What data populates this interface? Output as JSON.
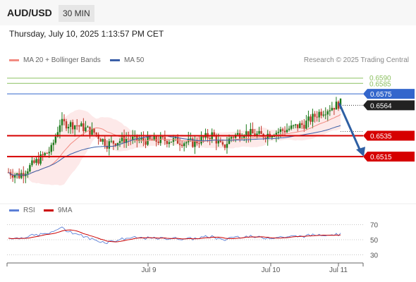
{
  "header": {
    "pair": "AUD/USD",
    "timeframe": "30 MIN"
  },
  "datetime": "Thursday, July 10, 2025 1:13:57 PM CET",
  "credit": "Research © 2025 Trading Central",
  "colors": {
    "bull": "#1a7a1a",
    "bear": "#c0392b",
    "band": "#fbdada",
    "ma20": "#f28b82",
    "ma50": "#3a5fa8",
    "support": "#d60000",
    "resistance": "#3366cc",
    "target": "#8cc060",
    "rsi": "#5b7fd6",
    "rsi_ma": "#cc0000",
    "arrow": "#2e5fa3"
  },
  "chart_data": [
    {
      "type": "candlestick",
      "legend": [
        {
          "name": "MA 20 + Bollinger Bands",
          "color": "#f28b82"
        },
        {
          "name": "MA 50",
          "color": "#3a5fa8"
        }
      ],
      "x_ticks": [
        "Jul 9",
        "Jul 10",
        "Jul 11"
      ],
      "ylim": [
        0.6476,
        0.66
      ],
      "current_price": 0.6564,
      "levels": [
        {
          "label": "0.6590",
          "value": 0.659,
          "kind": "target"
        },
        {
          "label": "0.6585",
          "value": 0.6585,
          "kind": "target"
        },
        {
          "label": "0.6575",
          "value": 0.6575,
          "kind": "resistance"
        },
        {
          "label": "0.6535",
          "value": 0.6535,
          "kind": "support"
        },
        {
          "label": "0.6515",
          "value": 0.6515,
          "kind": "support"
        }
      ],
      "forecast": {
        "from": 0.6566,
        "to": 0.6515,
        "direction": "down"
      }
    },
    {
      "type": "line",
      "legend": [
        {
          "name": "RSI",
          "color": "#5b7fd6"
        },
        {
          "name": "9MA",
          "color": "#cc0000"
        }
      ],
      "y_ticks": [
        70,
        50,
        30
      ],
      "ylim": [
        20,
        80
      ]
    }
  ]
}
